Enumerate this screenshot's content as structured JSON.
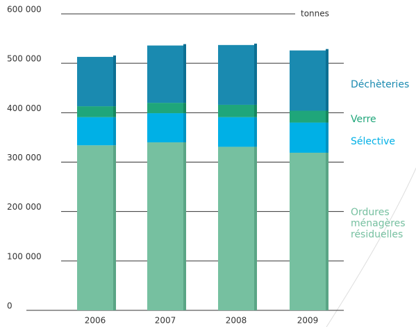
{
  "chart_data": {
    "type": "bar",
    "stacked": true,
    "y_unit": "tonnes",
    "categories": [
      "2006",
      "2007",
      "2008",
      "2009"
    ],
    "series": [
      {
        "name": "Ordures ménagères résiduelles",
        "color": "#76c0a0",
        "edge": "#5aa585",
        "values": [
          334000,
          340000,
          331000,
          319000
        ]
      },
      {
        "name": "Sélective",
        "color": "#00b0e6",
        "edge": "#0093c2",
        "values": [
          57000,
          59000,
          60000,
          61000
        ]
      },
      {
        "name": "Verre",
        "color": "#1fa67a",
        "edge": "#16885f",
        "values": [
          22000,
          21000,
          25000,
          24000
        ]
      },
      {
        "name": "Déchèteries",
        "color": "#1a8ab0",
        "edge": "#0c6f93",
        "values": [
          100000,
          116000,
          121000,
          122000
        ]
      }
    ],
    "ylim": [
      0,
      600000
    ],
    "yticks": [
      0,
      {
        "value": 100000,
        "label": "100 000"
      },
      {
        "value": 200000,
        "label": "200 000"
      },
      {
        "value": 300000,
        "label": "300 000"
      },
      {
        "value": 400000,
        "label": "400 000"
      },
      {
        "value": 500000,
        "label": "500 000"
      },
      {
        "value": 600000,
        "label": "600 000"
      }
    ],
    "grid": true
  }
}
